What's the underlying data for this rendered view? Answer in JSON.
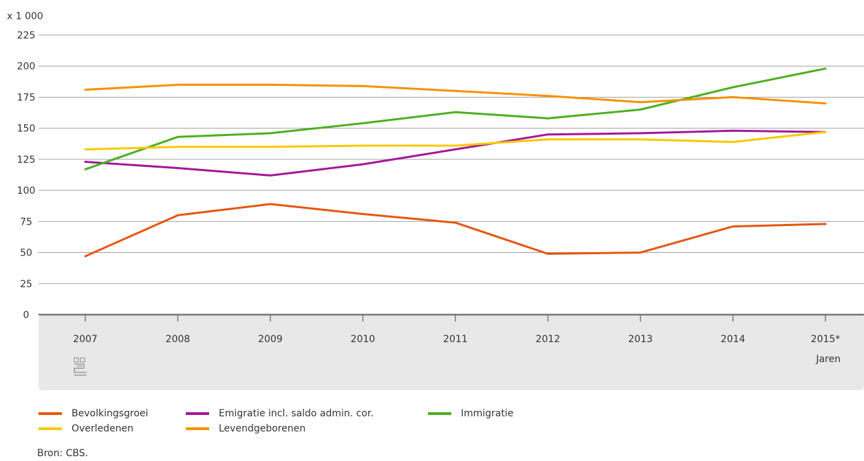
{
  "chart_data": {
    "type": "line",
    "unit_label": "x 1 000",
    "xlabel": "Jaren",
    "ylabel": "",
    "ylim": [
      0,
      225
    ],
    "yticks": [
      0,
      25,
      50,
      75,
      100,
      125,
      150,
      175,
      200,
      225
    ],
    "grid": true,
    "legend_position": "bottom",
    "categories": [
      "2007",
      "2008",
      "2009",
      "2010",
      "2011",
      "2012",
      "2013",
      "2014",
      "2015*"
    ],
    "series": [
      {
        "name": "Bevolkingsgroei",
        "color": "#e5560f",
        "values": [
          47,
          80,
          89,
          81,
          74,
          49,
          50,
          71,
          73
        ]
      },
      {
        "name": "Emigratie incl. saldo admin. cor.",
        "color": "#a4169a",
        "values": [
          123,
          118,
          112,
          121,
          133,
          145,
          146,
          148,
          147
        ]
      },
      {
        "name": "Immigratie",
        "color": "#4caf21",
        "values": [
          117,
          143,
          146,
          154,
          163,
          158,
          165,
          183,
          198
        ]
      },
      {
        "name": "Overledenen",
        "color": "#f9c800",
        "values": [
          133,
          135,
          135,
          136,
          136,
          141,
          141,
          139,
          147
        ]
      },
      {
        "name": "Levendgeborenen",
        "color": "#f39200",
        "values": [
          181,
          185,
          185,
          184,
          180,
          176,
          171,
          175,
          170
        ]
      }
    ]
  },
  "source": "Bron: CBS.",
  "logo_icon": "cbs-logo-icon"
}
